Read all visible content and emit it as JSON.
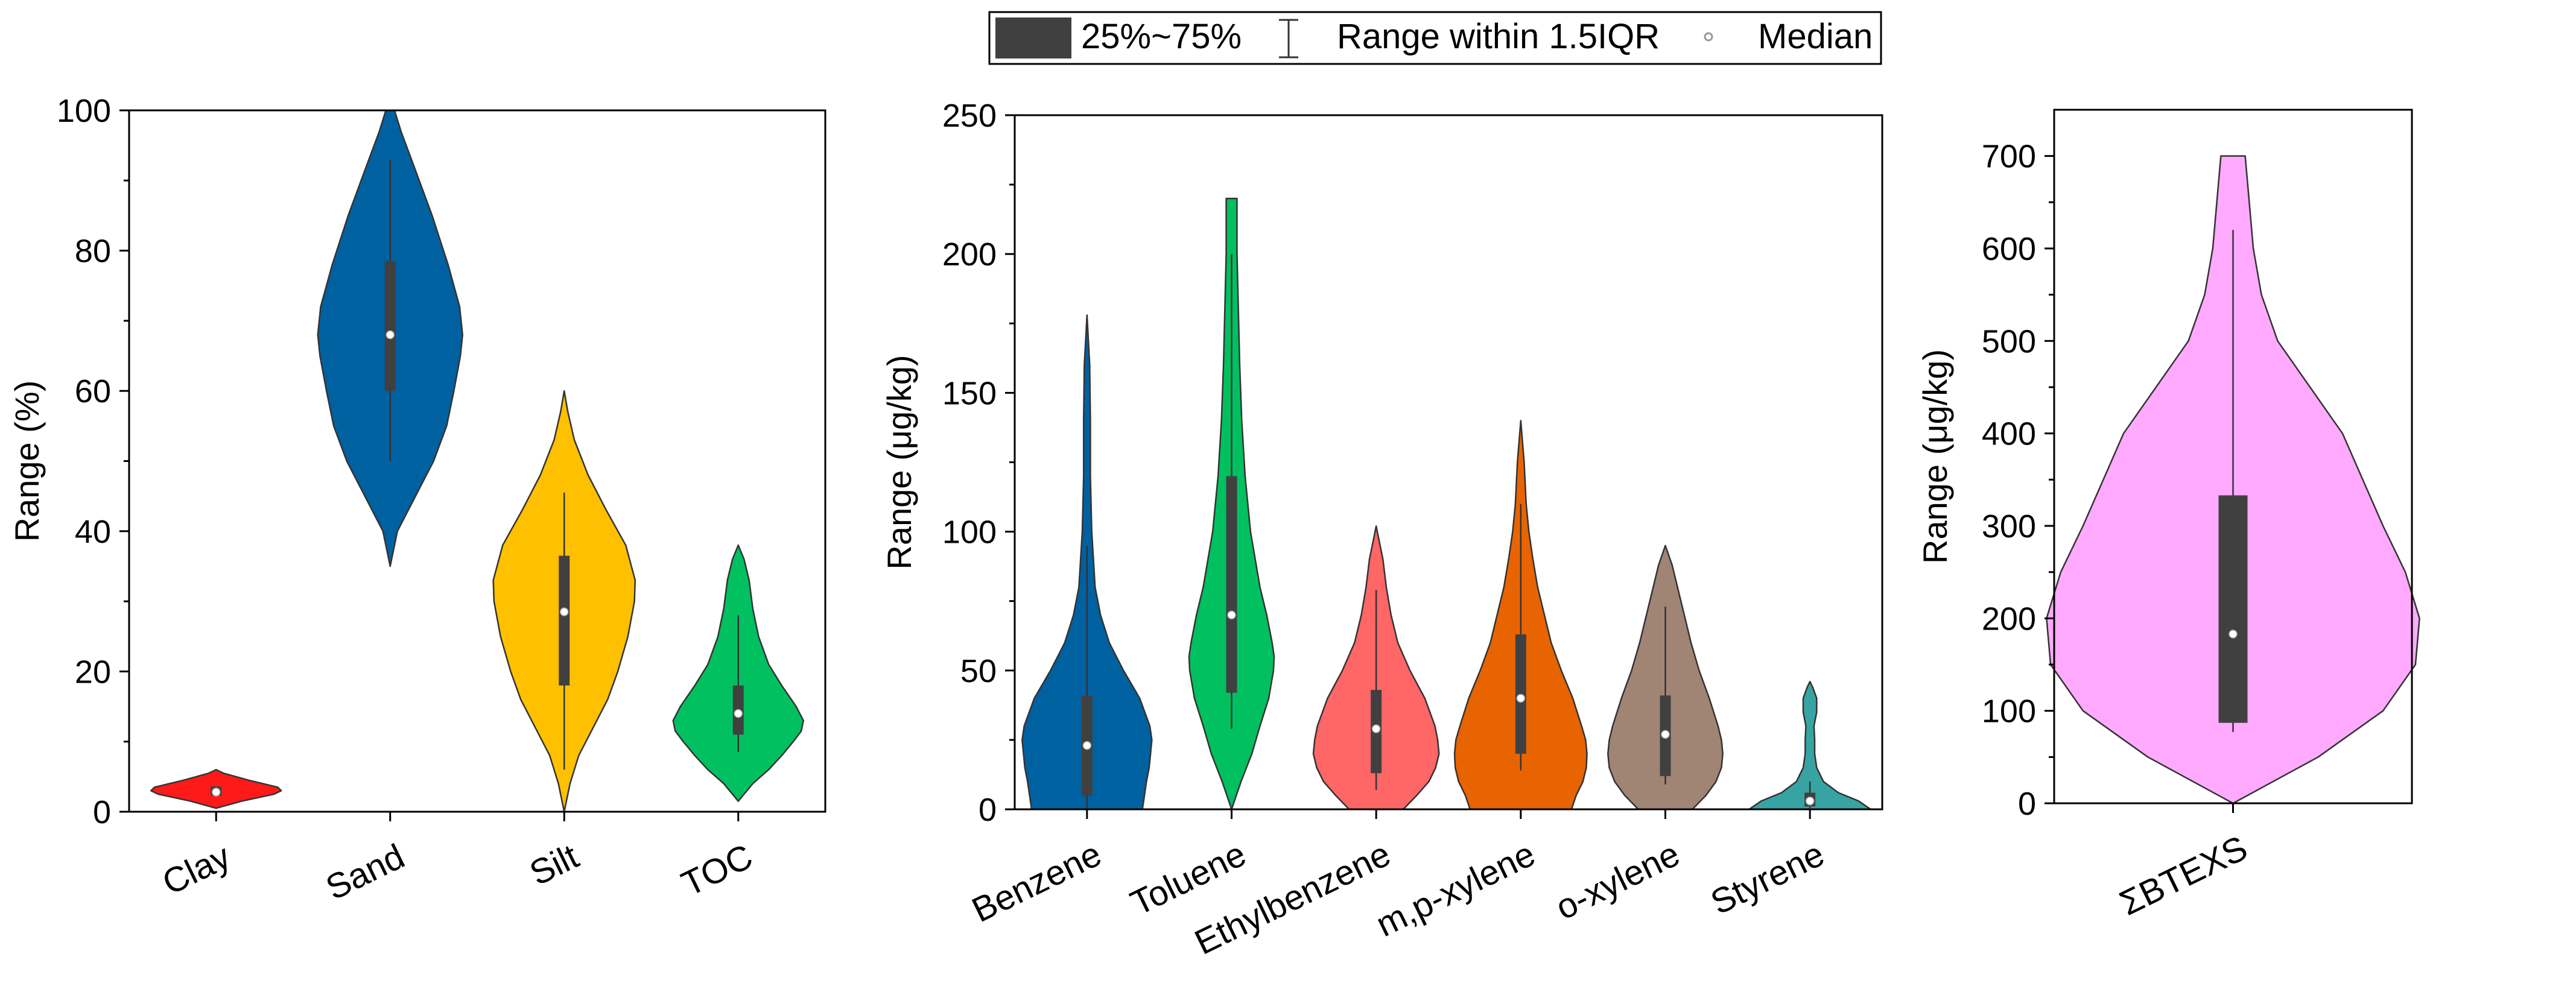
{
  "legend": {
    "box_label": "25%~75%",
    "range_label": "Range within 1.5IQR",
    "median_label": "Median",
    "box_color": "#404040"
  },
  "chart_data": [
    {
      "type": "violin",
      "id": "p1",
      "ylabel": "Range (%)",
      "ylim": [
        0,
        100
      ],
      "yticks": [
        0,
        20,
        40,
        60,
        80,
        100
      ],
      "yminor": 10,
      "categories": [
        "Clay",
        "Sand",
        "Silt",
        "TOC"
      ],
      "violins": [
        {
          "label": "Clay",
          "color": "#ff1a1a",
          "shape": [
            [
              0.5,
              0
            ],
            [
              1.5,
              0.35
            ],
            [
              2.5,
              0.8
            ],
            [
              3,
              0.9
            ],
            [
              3.5,
              0.85
            ],
            [
              4.5,
              0.45
            ],
            [
              5.5,
              0.1
            ],
            [
              6,
              0
            ]
          ],
          "q1": 2.3,
          "q3": 3.6,
          "whisker_low": 2.3,
          "whisker_high": 3.6,
          "median": 2.8
        },
        {
          "label": "Sand",
          "color": "#0061a1",
          "shape": [
            [
              35,
              0
            ],
            [
              40,
              0.1
            ],
            [
              45,
              0.35
            ],
            [
              50,
              0.6
            ],
            [
              55,
              0.78
            ],
            [
              60,
              0.88
            ],
            [
              65,
              0.97
            ],
            [
              68,
              1.0
            ],
            [
              72,
              0.96
            ],
            [
              78,
              0.8
            ],
            [
              85,
              0.58
            ],
            [
              92,
              0.33
            ],
            [
              97,
              0.15
            ],
            [
              100,
              0.06
            ]
          ],
          "q1": 60,
          "q3": 78.5,
          "whisker_low": 50,
          "whisker_high": 93,
          "median": 68
        },
        {
          "label": "Silt",
          "color": "#ffc000",
          "shape": [
            [
              0,
              0
            ],
            [
              4,
              0.08
            ],
            [
              8,
              0.2
            ],
            [
              12,
              0.4
            ],
            [
              16,
              0.6
            ],
            [
              20,
              0.74
            ],
            [
              25,
              0.88
            ],
            [
              30,
              0.97
            ],
            [
              33,
              0.98
            ],
            [
              38,
              0.85
            ],
            [
              43,
              0.58
            ],
            [
              48,
              0.33
            ],
            [
              53,
              0.14
            ],
            [
              57,
              0.05
            ],
            [
              60,
              0
            ]
          ],
          "q1": 18,
          "q3": 36.5,
          "whisker_low": 6,
          "whisker_high": 45.5,
          "median": 28.5
        },
        {
          "label": "TOC",
          "color": "#00c060",
          "shape": [
            [
              1.5,
              0
            ],
            [
              4,
              0.2
            ],
            [
              6,
              0.42
            ],
            [
              8,
              0.6
            ],
            [
              10,
              0.76
            ],
            [
              11.5,
              0.87
            ],
            [
              13,
              0.9
            ],
            [
              15,
              0.8
            ],
            [
              18,
              0.6
            ],
            [
              21,
              0.42
            ],
            [
              25,
              0.28
            ],
            [
              29,
              0.2
            ],
            [
              33,
              0.15
            ],
            [
              36,
              0.08
            ],
            [
              38,
              0
            ]
          ],
          "q1": 11,
          "q3": 18,
          "whisker_low": 8.5,
          "whisker_high": 28,
          "median": 14
        }
      ]
    },
    {
      "type": "violin",
      "id": "p2",
      "ylabel": "Range (μg/kg)",
      "ylim": [
        0,
        250
      ],
      "yticks": [
        0,
        50,
        100,
        150,
        200,
        250
      ],
      "yminor": 25,
      "categories": [
        "Benzene",
        "Toluene",
        "Ethylbenzene",
        "m,p-xylene",
        "o-xylene",
        "Styrene"
      ],
      "violins": [
        {
          "label": "Benzene",
          "color": "#0061a1",
          "shape": [
            [
              0,
              0.82
            ],
            [
              5,
              0.85
            ],
            [
              10,
              0.88
            ],
            [
              15,
              0.92
            ],
            [
              20,
              0.94
            ],
            [
              25,
              0.96
            ],
            [
              30,
              0.93
            ],
            [
              40,
              0.78
            ],
            [
              50,
              0.54
            ],
            [
              60,
              0.33
            ],
            [
              70,
              0.2
            ],
            [
              80,
              0.12
            ],
            [
              100,
              0.07
            ],
            [
              120,
              0.05
            ],
            [
              140,
              0.05
            ],
            [
              160,
              0.04
            ],
            [
              178,
              0
            ]
          ],
          "q1": 5,
          "q3": 41,
          "whisker_low": 0,
          "whisker_high": 95,
          "median": 23
        },
        {
          "label": "Toluene",
          "color": "#00c060",
          "shape": [
            [
              0,
              0
            ],
            [
              10,
              0.14
            ],
            [
              20,
              0.3
            ],
            [
              30,
              0.42
            ],
            [
              40,
              0.55
            ],
            [
              50,
              0.62
            ],
            [
              55,
              0.63
            ],
            [
              60,
              0.6
            ],
            [
              70,
              0.52
            ],
            [
              80,
              0.42
            ],
            [
              100,
              0.28
            ],
            [
              120,
              0.2
            ],
            [
              140,
              0.15
            ],
            [
              160,
              0.12
            ],
            [
              180,
              0.1
            ],
            [
              200,
              0.08
            ],
            [
              220,
              0.08
            ]
          ],
          "q1": 42,
          "q3": 120,
          "whisker_low": 29,
          "whisker_high": 200,
          "median": 70
        },
        {
          "label": "Ethylbenzene",
          "color": "#ff6666",
          "shape": [
            [
              0,
              0.4
            ],
            [
              5,
              0.6
            ],
            [
              10,
              0.78
            ],
            [
              15,
              0.88
            ],
            [
              20,
              0.93
            ],
            [
              25,
              0.91
            ],
            [
              30,
              0.87
            ],
            [
              40,
              0.72
            ],
            [
              50,
              0.5
            ],
            [
              60,
              0.32
            ],
            [
              70,
              0.22
            ],
            [
              80,
              0.15
            ],
            [
              90,
              0.1
            ],
            [
              102,
              0
            ]
          ],
          "q1": 13,
          "q3": 43,
          "whisker_low": 7,
          "whisker_high": 79,
          "median": 29
        },
        {
          "label": "m,p-xylene",
          "color": "#e86400",
          "shape": [
            [
              0,
              0.75
            ],
            [
              5,
              0.82
            ],
            [
              10,
              0.92
            ],
            [
              15,
              0.97
            ],
            [
              20,
              0.98
            ],
            [
              25,
              0.96
            ],
            [
              30,
              0.9
            ],
            [
              40,
              0.77
            ],
            [
              50,
              0.6
            ],
            [
              60,
              0.45
            ],
            [
              70,
              0.35
            ],
            [
              80,
              0.25
            ],
            [
              90,
              0.18
            ],
            [
              100,
              0.12
            ],
            [
              110,
              0.08
            ],
            [
              125,
              0.05
            ],
            [
              140,
              0
            ]
          ],
          "q1": 20,
          "q3": 63,
          "whisker_low": 14,
          "whisker_high": 110,
          "median": 40
        },
        {
          "label": "o-xylene",
          "color": "#a08474",
          "shape": [
            [
              0,
              0.4
            ],
            [
              5,
              0.6
            ],
            [
              10,
              0.75
            ],
            [
              15,
              0.83
            ],
            [
              20,
              0.85
            ],
            [
              25,
              0.83
            ],
            [
              30,
              0.78
            ],
            [
              40,
              0.65
            ],
            [
              50,
              0.5
            ],
            [
              60,
              0.38
            ],
            [
              70,
              0.28
            ],
            [
              80,
              0.18
            ],
            [
              88,
              0.1
            ],
            [
              95,
              0
            ]
          ],
          "q1": 12,
          "q3": 41,
          "whisker_low": 9,
          "whisker_high": 73,
          "median": 27
        },
        {
          "label": "Styrene",
          "color": "#38a3a3",
          "shape": [
            [
              0,
              0.9
            ],
            [
              3,
              0.72
            ],
            [
              6,
              0.42
            ],
            [
              10,
              0.2
            ],
            [
              15,
              0.1
            ],
            [
              20,
              0.07
            ],
            [
              25,
              0.07
            ],
            [
              30,
              0.06
            ],
            [
              35,
              0.1
            ],
            [
              40,
              0.1
            ],
            [
              44,
              0.04
            ],
            [
              46,
              0
            ]
          ],
          "q1": 1,
          "q3": 6,
          "whisker_low": 0,
          "whisker_high": 10,
          "median": 3
        }
      ]
    },
    {
      "type": "violin",
      "id": "p3",
      "ylabel": "Range (μg/kg)",
      "ylim": [
        0,
        750
      ],
      "yticks": [
        0,
        100,
        200,
        300,
        400,
        500,
        600,
        700
      ],
      "yminor": 50,
      "categories": [
        "ΣBTEXS"
      ],
      "violins": [
        {
          "label": "ΣBTEXS",
          "color": "#ffaaff",
          "shape": [
            [
              0,
              0
            ],
            [
              50,
              0.42
            ],
            [
              100,
              0.74
            ],
            [
              150,
              0.9
            ],
            [
              200,
              0.92
            ],
            [
              250,
              0.85
            ],
            [
              300,
              0.74
            ],
            [
              350,
              0.64
            ],
            [
              400,
              0.54
            ],
            [
              450,
              0.38
            ],
            [
              500,
              0.22
            ],
            [
              550,
              0.14
            ],
            [
              600,
              0.1
            ],
            [
              650,
              0.08
            ],
            [
              700,
              0.06
            ]
          ],
          "q1": 87,
          "q3": 333,
          "whisker_low": 77,
          "whisker_high": 620,
          "median": 183
        }
      ]
    }
  ]
}
